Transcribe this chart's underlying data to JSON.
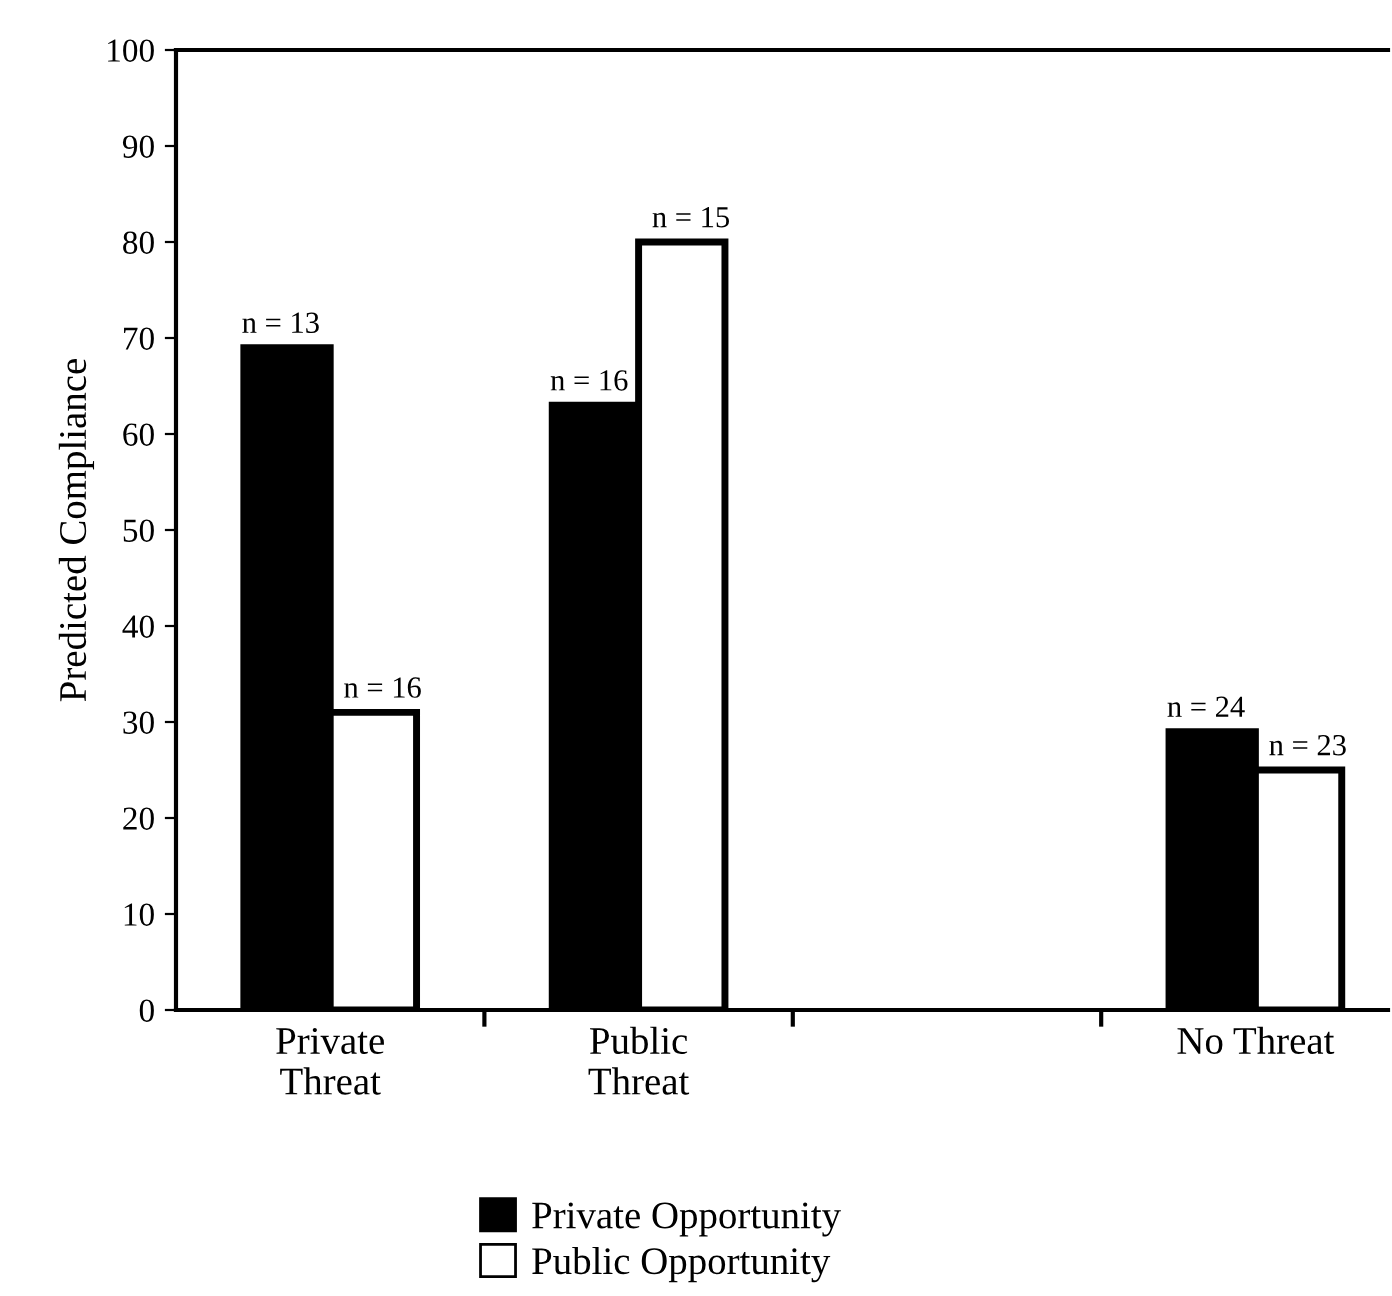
{
  "chart_data": {
    "type": "bar",
    "ylabel": "Predicted Compliance",
    "categories": [
      "Private\nThreat",
      "Public\nThreat",
      null,
      "No Threat"
    ],
    "series": [
      {
        "name": "Private Opportunity",
        "color": "#000000",
        "values": [
          69,
          63,
          null,
          29
        ]
      },
      {
        "name": "Public Opportunity",
        "color": "#ffffff",
        "values": [
          31,
          80,
          null,
          25
        ]
      }
    ],
    "annotations": [
      {
        "text": "n = 13",
        "x": "Private\nThreat",
        "y": 69
      },
      {
        "text": "n = 16",
        "x": "Private\nThreat",
        "y": 31
      },
      {
        "text": "n = 16",
        "x": "Public\nThreat",
        "y": 63
      },
      {
        "text": "n = 15",
        "x": "Public\nThreat",
        "y": 80
      },
      {
        "text": "n = 24",
        "x": "No Threat",
        "y": 29
      },
      {
        "text": "n = 23",
        "x": "No Threat",
        "y": 25
      }
    ],
    "ylim": [
      0,
      100
    ],
    "yticks": [
      0,
      10,
      20,
      30,
      40,
      50,
      60,
      70,
      80,
      90,
      100
    ],
    "grid": false,
    "legend": "bottom"
  }
}
